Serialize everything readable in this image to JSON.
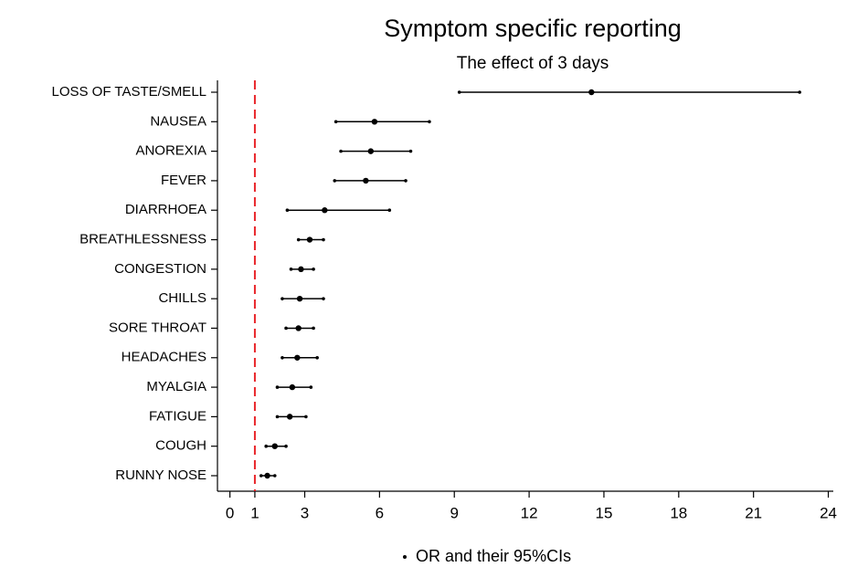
{
  "chart_data": {
    "type": "forest",
    "title": "Symptom specific reporting",
    "subtitle": "The effect of 3 days",
    "categories": [
      "LOSS OF TASTE/SMELL",
      "NAUSEA",
      "ANOREXIA",
      "FEVER",
      "DIARRHOEA",
      "BREATHLESSNESS",
      "CONGESTION",
      "CHILLS",
      "SORE THROAT",
      "HEADACHES",
      "MYALGIA",
      "FATIGUE",
      "COUGH",
      "RUNNY NOSE"
    ],
    "series": [
      {
        "name": "OR and their 95%CIs",
        "color": "#000000",
        "values": [
          14.5,
          5.8,
          5.65,
          5.45,
          3.8,
          3.2,
          2.85,
          2.8,
          2.75,
          2.7,
          2.5,
          2.4,
          1.8,
          1.5
        ],
        "lower": [
          9.2,
          4.25,
          4.45,
          4.2,
          2.3,
          2.75,
          2.45,
          2.1,
          2.25,
          2.1,
          1.9,
          1.9,
          1.45,
          1.25
        ],
        "upper": [
          22.85,
          8.0,
          7.25,
          7.05,
          6.4,
          3.75,
          3.35,
          3.75,
          3.35,
          3.5,
          3.25,
          3.05,
          2.25,
          1.8
        ]
      }
    ],
    "reference_line": {
      "value": 1,
      "color": "#e8252a"
    },
    "xlim": [
      -0.5,
      24.2
    ],
    "xticks": [
      0,
      1,
      3,
      6,
      9,
      12,
      15,
      18,
      21,
      24
    ],
    "legend": "bottom"
  }
}
